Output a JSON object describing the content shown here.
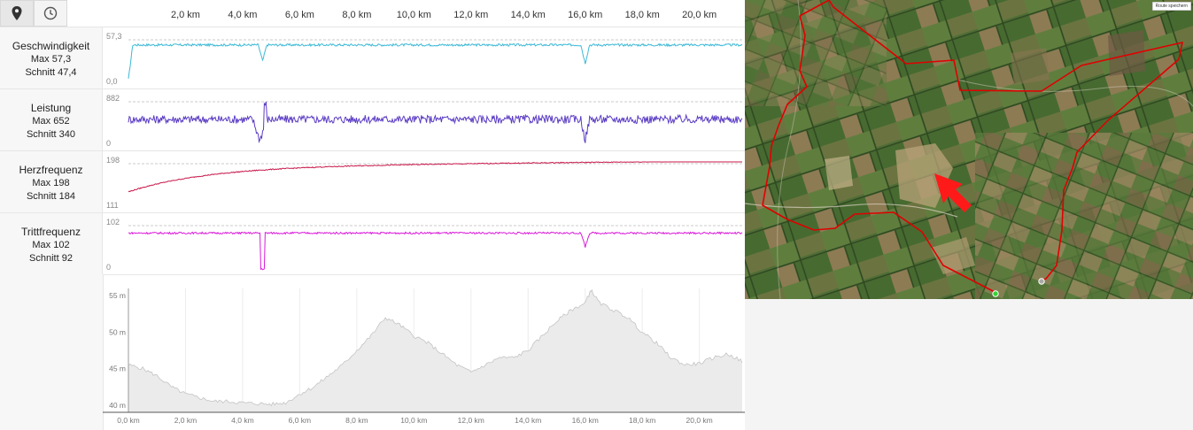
{
  "toolbar": {
    "buttons": [
      {
        "icon": "map-pin-icon",
        "active": true
      },
      {
        "icon": "clock-icon",
        "active": false
      }
    ]
  },
  "distance_axis": {
    "labels": [
      "2,0 km",
      "4,0 km",
      "6,0 km",
      "8,0 km",
      "10,0 km",
      "12,0 km",
      "14,0 km",
      "16,0 km",
      "18,0 km",
      "20,0 km"
    ],
    "values_km": [
      2,
      4,
      6,
      8,
      10,
      12,
      14,
      16,
      18,
      20
    ],
    "range_km": [
      0,
      21.5
    ]
  },
  "metrics": [
    {
      "title": "Geschwindigkeit",
      "max": "Max 57,3",
      "avg": "Schnitt 47,4",
      "ymax": "57,3",
      "ymin": "0,0",
      "color": "#3cb8d6",
      "key": "speed"
    },
    {
      "title": "Leistung",
      "max": "Max 652",
      "avg": "Schnitt 340",
      "ymax": "882",
      "ymin": "0",
      "color": "#5b3cc4",
      "key": "power"
    },
    {
      "title": "Herzfrequenz",
      "max": "Max 198",
      "avg": "Schnitt 184",
      "ymax": "198",
      "ymin": "111",
      "color": "#c8174a",
      "key": "hr"
    },
    {
      "title": "Trittfrequenz",
      "max": "Max 102",
      "avg": "Schnitt 92",
      "ymax": "102",
      "ymin": "0",
      "color": "#d91ad9",
      "key": "cadence"
    }
  ],
  "chart_data": {
    "type": "area",
    "x_unit": "km",
    "xlim": [
      0,
      21.5
    ],
    "ylim": [
      39,
      56
    ],
    "y_ticks": [
      "40 m",
      "45 m",
      "50 m",
      "55 m"
    ],
    "y_tick_values": [
      40,
      45,
      50,
      55
    ],
    "x_ticks": [
      "0,0 km",
      "2,0 km",
      "4,0 km",
      "6,0 km",
      "8,0 km",
      "10,0 km",
      "12,0 km",
      "14,0 km",
      "16,0 km",
      "18,0 km",
      "20,0 km"
    ],
    "x_tick_values": [
      0,
      2,
      4,
      6,
      8,
      10,
      12,
      14,
      16,
      18,
      20
    ],
    "x": [
      0,
      0.5,
      1.0,
      1.5,
      2.0,
      2.5,
      3.0,
      3.5,
      4.0,
      4.5,
      5.0,
      5.5,
      6.0,
      6.5,
      7.0,
      7.5,
      8.0,
      8.5,
      9.0,
      9.5,
      10.0,
      10.5,
      11.0,
      11.5,
      12.0,
      12.5,
      13.0,
      13.5,
      14.0,
      14.5,
      15.0,
      15.5,
      16.0,
      16.2,
      16.5,
      17.0,
      17.5,
      18.0,
      18.5,
      19.0,
      19.5,
      20.0,
      20.5,
      21.0,
      21.5
    ],
    "values": [
      45.5,
      45,
      44,
      42.5,
      41.5,
      41,
      40.5,
      40.5,
      40.3,
      40.2,
      40.1,
      40.3,
      41.5,
      42.5,
      44,
      45.5,
      47.5,
      49.5,
      52,
      51,
      49.5,
      48.5,
      47,
      45.5,
      44.5,
      45.5,
      46.5,
      46.5,
      47.5,
      49.5,
      51.5,
      53,
      54,
      55.8,
      54,
      53,
      52,
      50,
      48.5,
      46.5,
      45.5,
      45.7,
      46.5,
      47,
      46
    ]
  },
  "map": {
    "button_label": "Route speichern",
    "route_color": "#e00000"
  }
}
